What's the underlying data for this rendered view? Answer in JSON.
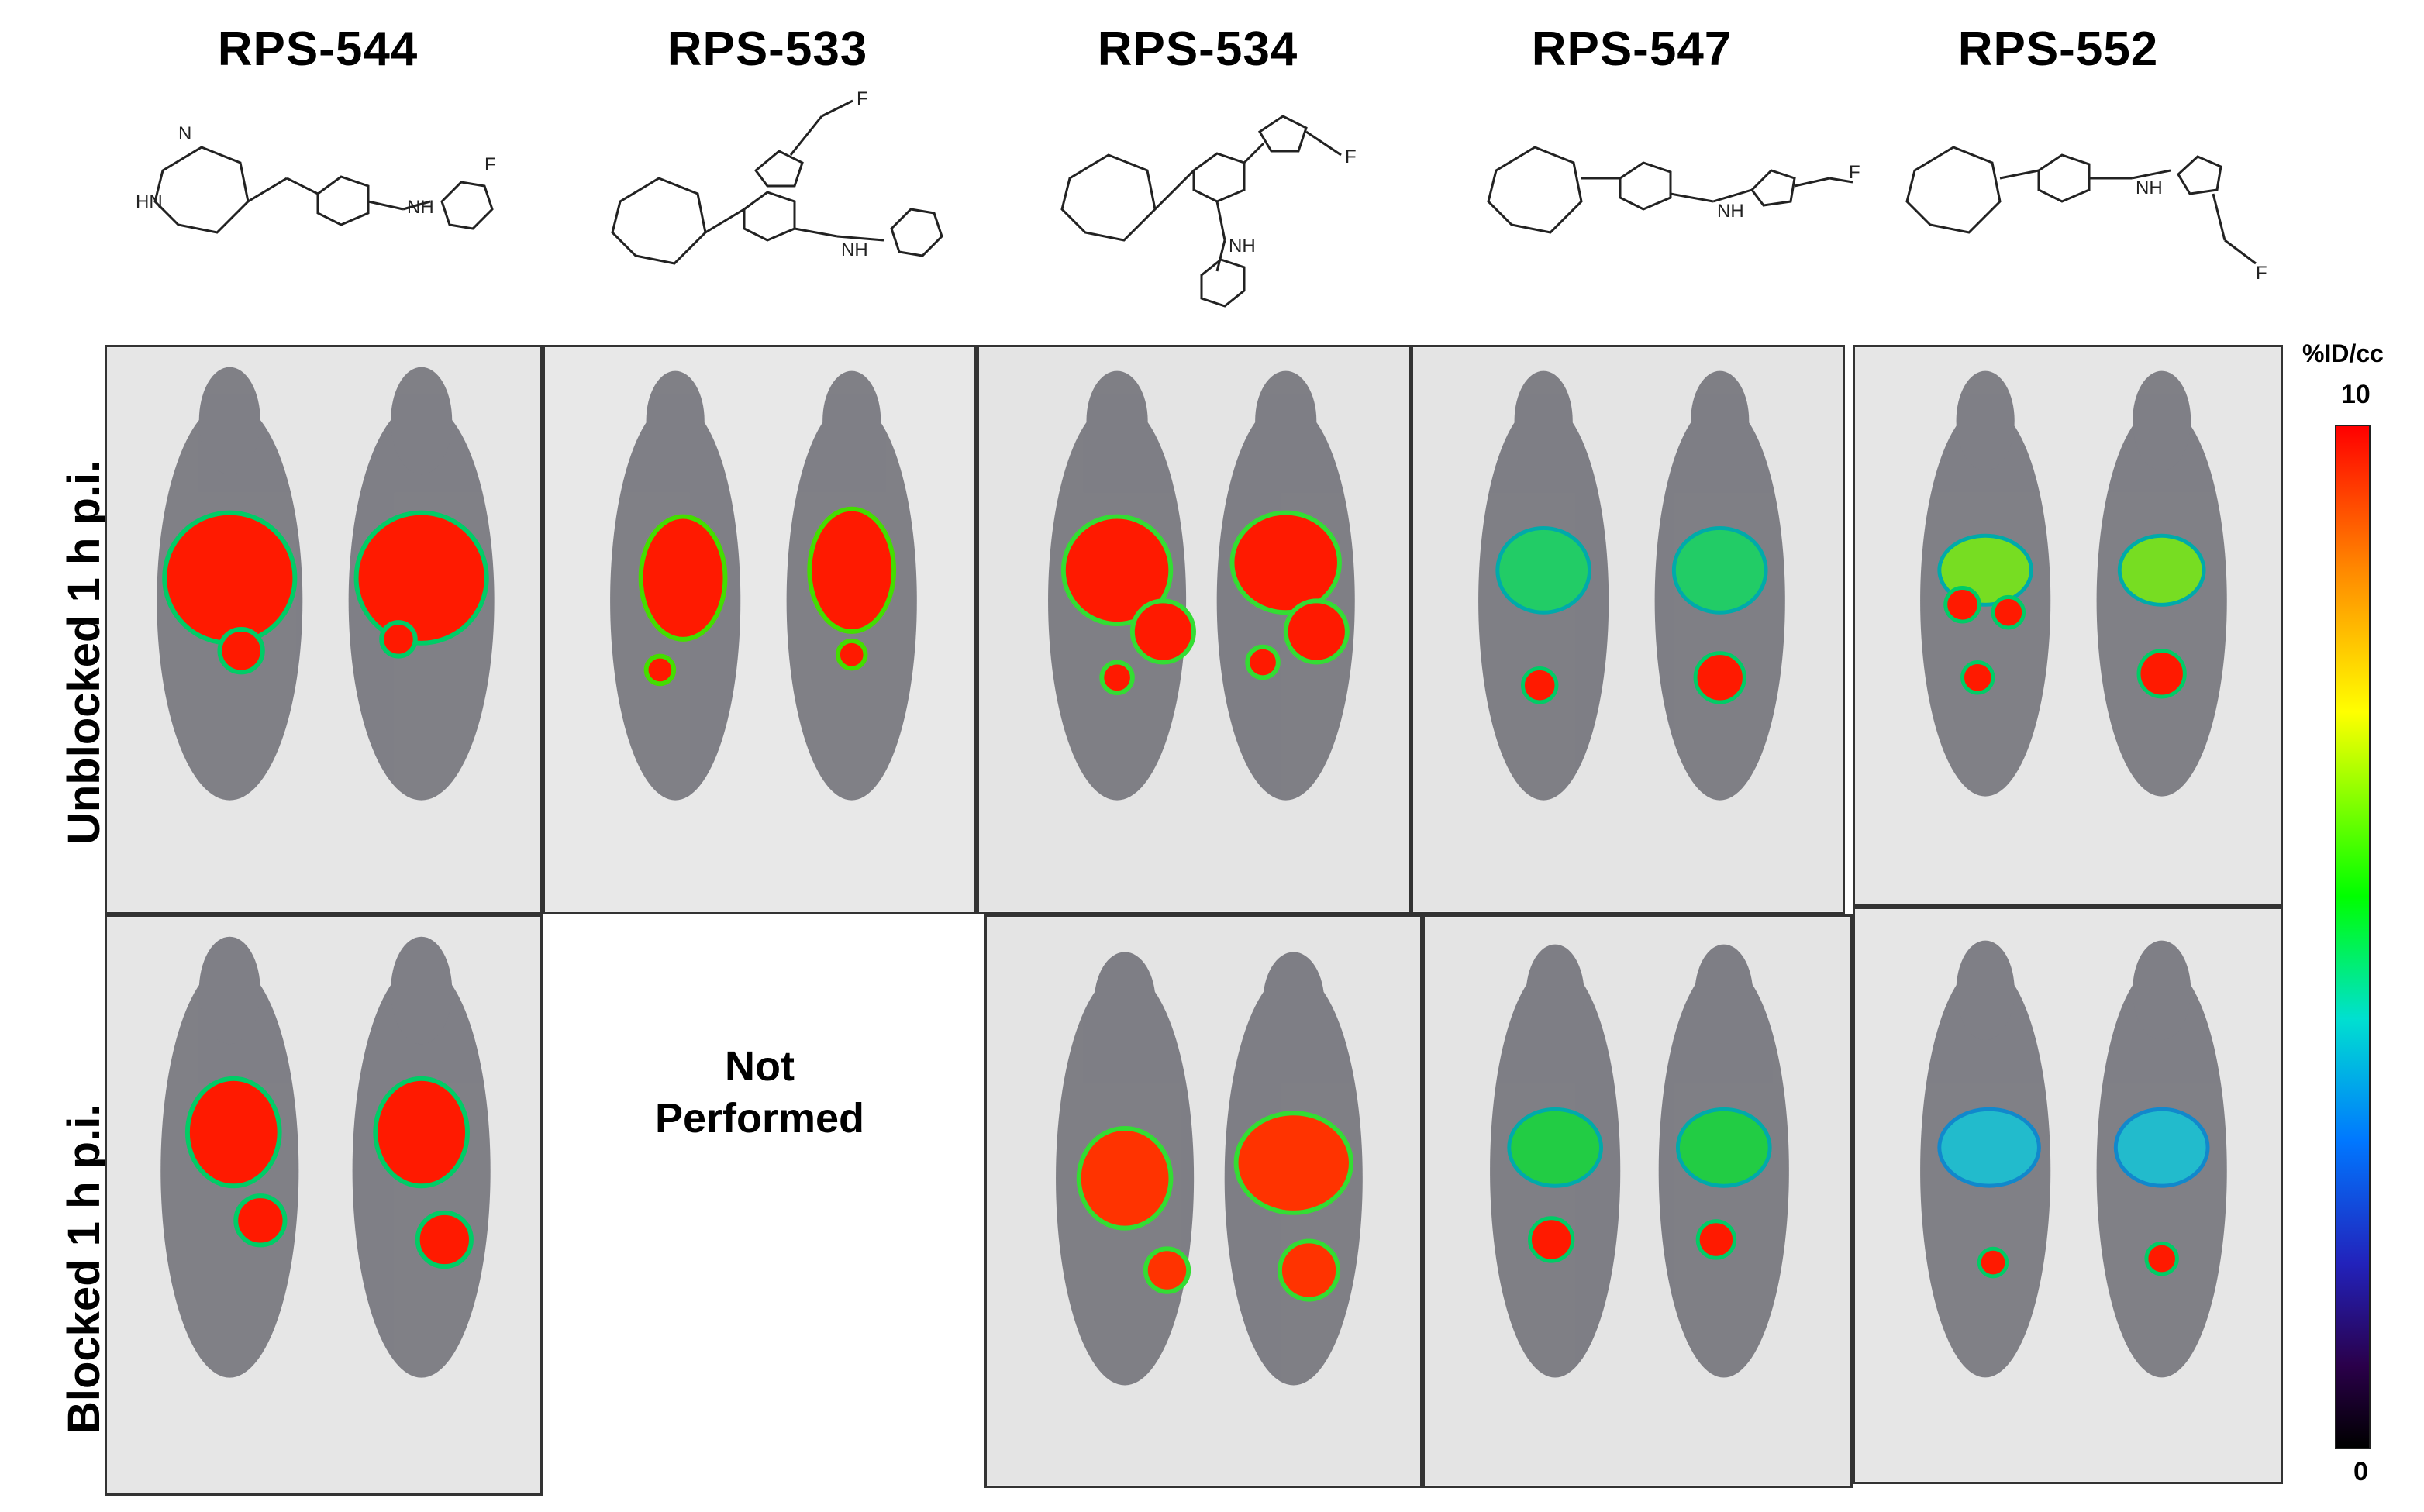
{
  "compounds": [
    "RPS-544",
    "RPS-533",
    "RPS-534",
    "RPS-547",
    "RPS-552"
  ],
  "rows": [
    "Unblocked 1 h p.i.",
    "Blocked 1 h p.i."
  ],
  "structure_atoms": {
    "nh": "NH",
    "h": "H",
    "n": "N",
    "f": "F",
    "hn": "HN"
  },
  "not_performed": "Not Performed",
  "colorbar": {
    "unit": "%ID/cc",
    "max": "10",
    "min": "0",
    "colors": [
      "#ff0000",
      "#ff8800",
      "#ffff00",
      "#00ff00",
      "#00e0d0",
      "#0077ff",
      "#2222bb",
      "#2a004a",
      "#000000"
    ]
  },
  "uptake_levels": {
    "unblocked": {
      "RPS-544": 10,
      "RPS-533": 10,
      "RPS-534": 10,
      "RPS-547": 5,
      "RPS-552": 7
    },
    "blocked": {
      "RPS-544": 10,
      "RPS-534": 9,
      "RPS-547": 5,
      "RPS-552": 4
    }
  }
}
